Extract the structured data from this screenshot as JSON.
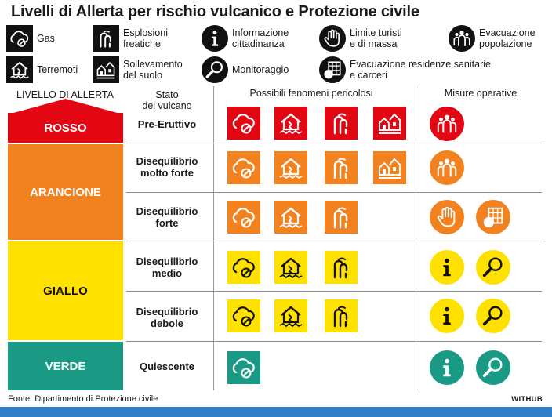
{
  "title": "Livelli di Allerta per rischio vulcanico e  Protezione civile",
  "legend": {
    "gas": "Gas",
    "esplosioni": "Esplosioni\nfreatiche",
    "informazione": "Informazione\ncittadinanza",
    "limite": "Limite turisti\ne di massa",
    "evacuazione_pop": "Evacuazione\npopolazione",
    "terremoti": "Terremoti",
    "sollevamento": "Sollevamento\ndel suolo",
    "monitoraggio": "Monitoraggio",
    "evacuazione_san": "Evacuazione residenze sanitarie\ne carceri"
  },
  "headers": {
    "livello": "LIVELLO DI ALLERTA",
    "stato": "Stato\ndel vulcano",
    "fenomeni": "Possibili fenomeni pericolosi",
    "misure": "Misure operative"
  },
  "levels": {
    "rosso": "ROSSO",
    "arancione": "ARANCIONE",
    "giallo": "GIALLO",
    "verde": "VERDE"
  },
  "stati": {
    "pre_eruttivo": "Pre-Eruttivo",
    "molto_forte": "Disequilibrio\nmolto forte",
    "forte": "Disequilibrio\nforte",
    "medio": "Disequilibrio\nmedio",
    "debole": "Disequilibrio\ndebole",
    "quiescente": "Quiescente"
  },
  "colors": {
    "rosso": "#e30613",
    "arancione": "#f28220",
    "giallo": "#ffe100",
    "verde": "#1a9a85",
    "legend_icon": "#111111"
  },
  "icons": {
    "gas": "gas-cloud-icon",
    "esplosioni": "phreatic-explosion-icon",
    "terremoti": "earthquake-house-icon",
    "sollevamento": "ground-uplift-icon",
    "informazione": "info-icon",
    "limite": "stop-hand-icon",
    "monitoraggio": "magnifier-icon",
    "evacuazione_pop": "people-group-icon",
    "evacuazione_san": "hospital-building-icon"
  },
  "footer": {
    "source": "Fonte: Dipartimento di Protezione civile",
    "brand": "WITHUB"
  }
}
